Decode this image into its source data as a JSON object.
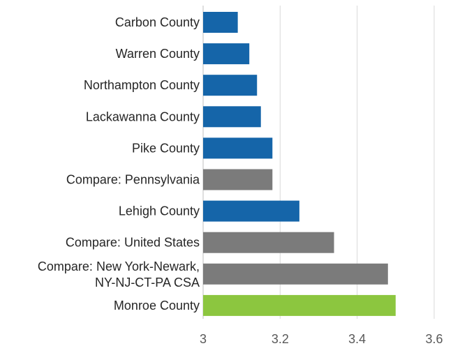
{
  "chart_data": {
    "type": "bar",
    "orientation": "horizontal",
    "title": "",
    "xlabel": "",
    "ylabel": "",
    "xlim": [
      3,
      3.6
    ],
    "grid": true,
    "legend": "none",
    "x_ticks": [
      "3",
      "3.2",
      "3.4",
      "3.6"
    ],
    "categories": [
      "Carbon County",
      "Warren County",
      "Northampton County",
      "Lackawanna County",
      "Pike County",
      "Compare: Pennsylvania",
      "Lehigh County",
      "Compare: United States",
      "Compare: New York-Newark, NY-NJ-CT-PA CSA",
      "Monroe County"
    ],
    "values": [
      3.09,
      3.12,
      3.14,
      3.15,
      3.18,
      3.18,
      3.25,
      3.34,
      3.48,
      3.5
    ],
    "bar_colors": [
      "#1565a9",
      "#1565a9",
      "#1565a9",
      "#1565a9",
      "#1565a9",
      "#7b7b7b",
      "#1565a9",
      "#7b7b7b",
      "#7b7b7b",
      "#8cc63f"
    ]
  }
}
